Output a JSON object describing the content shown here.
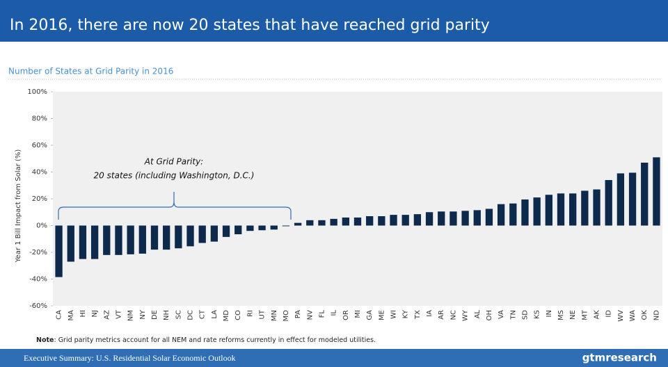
{
  "header": {
    "title": "In 2016, there are now 20 states that have reached grid parity"
  },
  "footer": {
    "text": "Executive Summary: U.S. Residential Solar Economic Outlook",
    "logo": "gtmresearch"
  },
  "note": {
    "label": "Note",
    "text": ": Grid parity metrics account for all NEM and rate reforms currently in effect for modeled utilities."
  },
  "chart_data": {
    "type": "bar",
    "title": "Number of States at Grid Parity in 2016",
    "ylabel": "Year 1 Bill Impact from Solar (%)",
    "annotations": [
      "At Grid Parity:",
      "20 states (including Washington, D.C.)"
    ],
    "categories": [
      "CA",
      "MA",
      "HI",
      "NJ",
      "AZ",
      "VT",
      "NM",
      "NY",
      "DE",
      "NH",
      "SC",
      "DC",
      "CT",
      "LA",
      "MD",
      "CO",
      "RI",
      "UT",
      "MN",
      "MO",
      "PA",
      "NV",
      "FL",
      "IL",
      "OR",
      "MI",
      "GA",
      "ME",
      "WI",
      "KY",
      "TX",
      "IA",
      "AR",
      "NC",
      "WY",
      "AL",
      "OH",
      "VA",
      "TN",
      "SD",
      "KS",
      "IN",
      "MS",
      "NE",
      "MT",
      "AK",
      "ID",
      "WV",
      "WA",
      "OK",
      "ND"
    ],
    "values": [
      -38.5,
      -27,
      -25,
      -25,
      -22,
      -22,
      -21.5,
      -21,
      -18,
      -18,
      -17,
      -15.5,
      -13,
      -12,
      -8.5,
      -6.5,
      -4,
      -3.5,
      -3,
      -0.5,
      2,
      4,
      4,
      5,
      6,
      6,
      7,
      7,
      8,
      8,
      8.5,
      10,
      10.5,
      10.5,
      11,
      11.5,
      12.5,
      16,
      16.5,
      19.5,
      21,
      23,
      24,
      24,
      26,
      27,
      34,
      39,
      39.5,
      47,
      51
    ],
    "color": "#0d2a4c",
    "ylim": [
      -60,
      100
    ],
    "yticks": [
      {
        "value": -60,
        "label": "-60%"
      },
      {
        "value": -40,
        "label": "-40%"
      },
      {
        "value": -20,
        "label": "-20%"
      },
      {
        "value": 0,
        "label": "0%"
      },
      {
        "value": 20,
        "label": "20%"
      },
      {
        "value": 40,
        "label": "40%"
      },
      {
        "value": 60,
        "label": "60%"
      },
      {
        "value": 80,
        "label": "80%"
      },
      {
        "value": 100,
        "label": "100%"
      }
    ]
  }
}
